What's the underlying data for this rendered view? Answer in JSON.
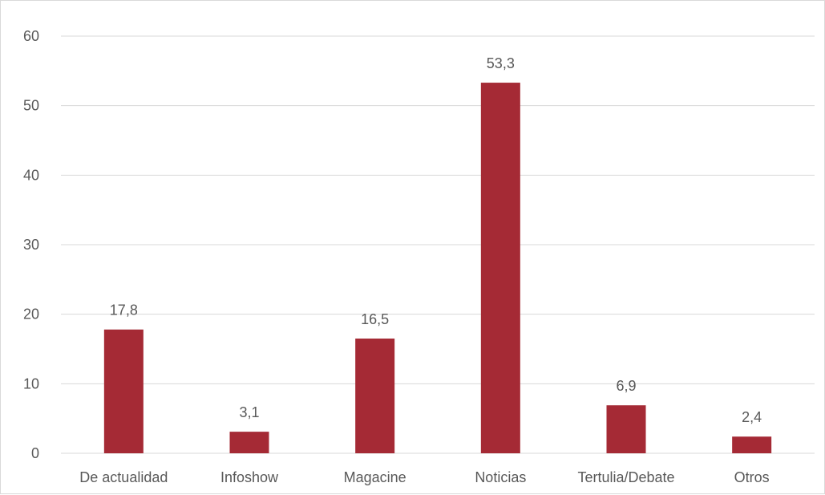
{
  "chart_data": {
    "type": "bar",
    "categories": [
      "De actualidad",
      "Infoshow",
      "Magacine",
      "Noticias",
      "Tertulia/Debate",
      "Otros"
    ],
    "values": [
      17.8,
      3.1,
      16.5,
      53.3,
      6.9,
      2.4
    ],
    "value_labels": [
      "17,8",
      "3,1",
      "16,5",
      "53,3",
      "6,9",
      "2,4"
    ],
    "yticks": [
      0,
      10,
      20,
      30,
      40,
      50,
      60
    ],
    "ylim": [
      0,
      60
    ],
    "grid": true,
    "legend": "none",
    "bar_color": "#a52a35",
    "grid_color": "#d9d9d9",
    "label_color": "#595959"
  }
}
